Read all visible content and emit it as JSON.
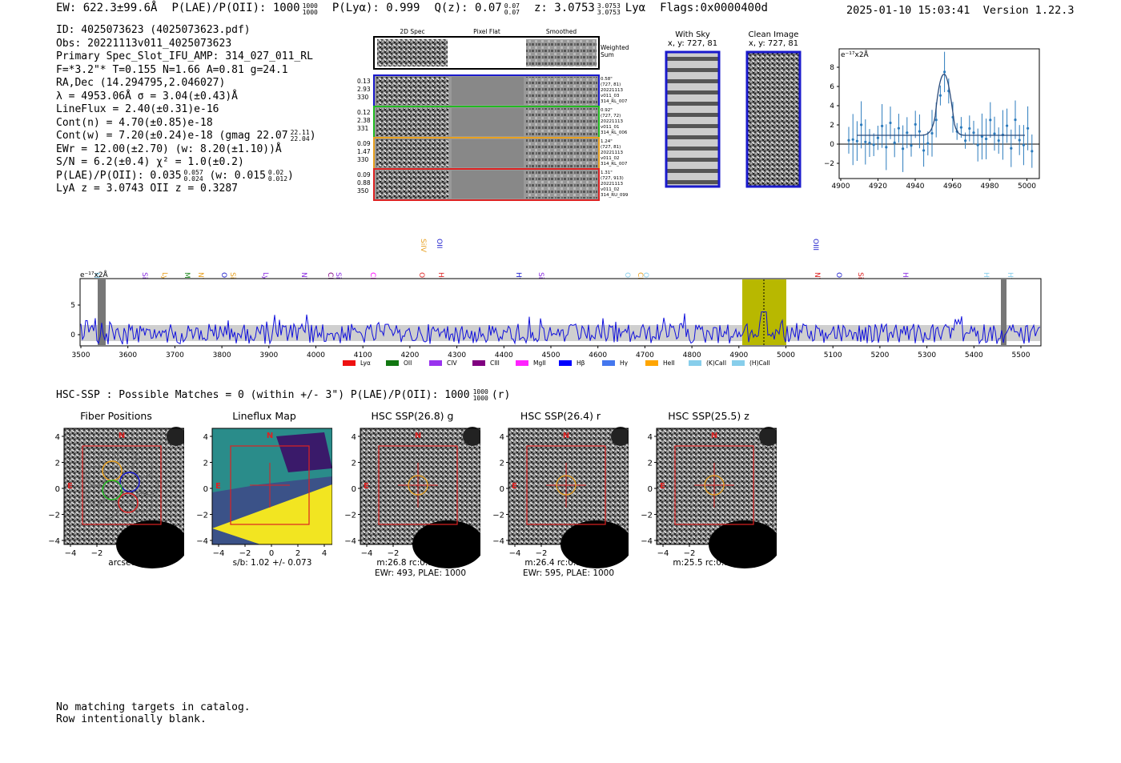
{
  "header": {
    "ew": "EW: 622.3±99.6Å",
    "plae": "P(LAE)/P(OII): 1000",
    "plae_hi": "1000",
    "plae_lo": "1000",
    "plya": "P(Lyα): 0.999",
    "qz": "Q(z): 0.07",
    "qz_hi": "0.07",
    "qz_lo": "0.07",
    "z": "z: 3.0753",
    "z_hi": "3.0753",
    "z_lo": "3.0753",
    "line": "Lyα",
    "flags": "Flags:0x0000400d",
    "datetime": "2025-01-10 15:03:41",
    "version": "Version 1.22.3"
  },
  "info": {
    "id": "ID: 4025073623 (4025073623.pdf)",
    "obs": "Obs: 20221113v011_4025073623",
    "primary": "Primary Spec_Slot_IFU_AMP: 314_027_011_RL",
    "params": "F=*3.2\"*  T=0.155  N=1.66  A=0.81  g=24.1",
    "radec": "RA,Dec (14.294795,2.046027)",
    "lambda": "λ = 4953.06Å   σ = 3.04(±0.43)Å",
    "lineflux": "LineFlux = 2.40(±0.31)e-16",
    "contn": "Cont(n) = 4.70(±0.85)e-18",
    "contw": "Cont(w) = 7.20(±0.24)e-18 (gmag 22.07",
    "contw_hi": "22.11",
    "contw_lo": "22.04",
    "contw_end": ")",
    "ewr": "EWr = 12.00(±2.70) (w: 8.20(±1.10))Å",
    "sn": "S/N = 6.2(±0.4)  χ² = 1.0(±0.2)",
    "plae2": "P(LAE)/P(OII): 0.035",
    "plae2_hi": "0.057",
    "plae2_lo": "0.024",
    "plae2_w": "(w: 0.015",
    "plae2_w_hi": "0.02",
    "plae2_w_lo": "0.012",
    "plae2_end": ")",
    "lyaz": "LyA z = 3.0743   OII z = 0.3287"
  },
  "spec2d": {
    "col_labels": [
      "2D Spec",
      "Pixel Flat",
      "Smoothed"
    ],
    "weighted": [
      "Weighted",
      "Sum"
    ],
    "rows": [
      {
        "left": [
          "0.13",
          "2.93",
          "330"
        ],
        "right": [
          "0.58\"",
          "(727, 81)",
          "20221113",
          "v011_03",
          "314_RL_007"
        ],
        "color": "#1a1acc"
      },
      {
        "left": [
          "0.12",
          "2.38",
          "331"
        ],
        "right": [
          "0.92\"",
          "(727, 72)",
          "20221113",
          "v011_01",
          "314_RL_006"
        ],
        "color": "#22bb22"
      },
      {
        "left": [
          "0.09",
          "1.47",
          "330"
        ],
        "right": [
          "1.24\"",
          "(727, 81)",
          "20221113",
          "v011_02",
          "314_RL_007"
        ],
        "color": "#e8a020"
      },
      {
        "left": [
          "0.09",
          "0.88",
          "350"
        ],
        "right": [
          "1.31\"",
          "(727, 913)",
          "20221113",
          "v011_02",
          "314_RU_099"
        ],
        "color": "#dd2222"
      }
    ]
  },
  "cutouts": {
    "withsky_title": "With Sky",
    "withsky_coord": "x, y: 727, 81",
    "clean_title": "Clean Image",
    "clean_coord": "x, y: 727, 81"
  },
  "zoom_plot": {
    "unit": "e⁻¹⁷x2Å",
    "x_ticks": [
      "4900",
      "4920",
      "4940",
      "4960",
      "4980",
      "5000"
    ],
    "y_ticks": [
      "8",
      "6",
      "4",
      "2",
      "0",
      "−2"
    ]
  },
  "full_spec": {
    "unit": "e⁻¹⁷x2Å",
    "x_ticks": [
      "3500",
      "3600",
      "3700",
      "3800",
      "3900",
      "4000",
      "4100",
      "4200",
      "4300",
      "4400",
      "4500",
      "4600",
      "4700",
      "4800",
      "4900",
      "5000",
      "5100",
      "5200",
      "5300",
      "5400",
      "5500"
    ],
    "y_ticks": [
      "5",
      "0"
    ],
    "line_labels": [
      {
        "name": "MgII",
        "color": "#87ceeb"
      },
      {
        "name": "SiIV",
        "color": "#8a2be2"
      },
      {
        "name": "Lyα",
        "color": "#e8a020"
      },
      {
        "name": "MgII",
        "color": "#228b22"
      },
      {
        "name": "NV",
        "color": "#e8a020"
      },
      {
        "name": "SiII",
        "color": "#e8a020"
      },
      {
        "name": "OII",
        "color": "#1a1acc"
      },
      {
        "name": "Lyα",
        "color": "#8a2be2"
      },
      {
        "name": "NV",
        "color": "#8a2be2"
      },
      {
        "name": "CIV",
        "color": "#800080"
      },
      {
        "name": "SiII",
        "color": "#8a2be2"
      },
      {
        "name": "CII",
        "color": "#ff00ff"
      },
      {
        "name": "SiIV",
        "color": "#e8a020"
      },
      {
        "name": "OVI",
        "color": "#dd2222"
      },
      {
        "name": "OII",
        "color": "#1a1acc"
      },
      {
        "name": "HeII",
        "color": "#dd2222"
      },
      {
        "name": "Hγ",
        "color": "#1a1acc"
      },
      {
        "name": "SiIV",
        "color": "#8a2be2"
      },
      {
        "name": "OII",
        "color": "#87ceeb"
      },
      {
        "name": "CIV",
        "color": "#e8a020"
      },
      {
        "name": "OII",
        "color": "#87ceeb"
      },
      {
        "name": "OIII",
        "color": "#1a1acc"
      },
      {
        "name": "NV",
        "color": "#dd2222"
      },
      {
        "name": "OIII",
        "color": "#1a1acc"
      },
      {
        "name": "SiII",
        "color": "#dd2222"
      },
      {
        "name": "HeII",
        "color": "#8a2be2"
      },
      {
        "name": "Hγ",
        "color": "#87ceeb"
      },
      {
        "name": "Hγ",
        "color": "#87ceeb"
      }
    ],
    "legend": [
      {
        "name": "Lyα",
        "color": "#ee1111"
      },
      {
        "name": "OII",
        "color": "#117711"
      },
      {
        "name": "CIV",
        "color": "#9933ee"
      },
      {
        "name": "CIII",
        "color": "#800080"
      },
      {
        "name": "MgII",
        "color": "#ff22ff"
      },
      {
        "name": "Hβ",
        "color": "#0000ff"
      },
      {
        "name": "Hγ",
        "color": "#4477ee"
      },
      {
        "name": "HeII",
        "color": "#ffa500"
      },
      {
        "name": "(K)CaII",
        "color": "#87ceeb"
      },
      {
        "name": "(H)CaII",
        "color": "#87ceeb"
      }
    ]
  },
  "hsc": {
    "line": "HSC-SSP : Possible Matches = 0 (within +/- 3\")  P(LAE)/P(OII): 1000",
    "line_hi": "1000",
    "line_lo": "1000",
    "line_end": "(r)",
    "panels": [
      {
        "title": "Fiber Positions",
        "cap1": "arcsecs",
        "cap2": ""
      },
      {
        "title": "Lineflux Map",
        "cap1": "s/b: 1.02 +/- 0.073",
        "cap2": ""
      },
      {
        "title": "HSC SSP(26.8) g",
        "cap1": "m:26.8 rc:0.9\"  s:0.1\"",
        "cap2": "EWr: 493, PLAE: 1000"
      },
      {
        "title": "HSC SSP(26.4) r",
        "cap1": "m:26.4 rc:0.9\"  s:0.1\"",
        "cap2": "EWr: 595, PLAE: 1000"
      },
      {
        "title": "HSC SSP(25.5) z",
        "cap1": "m:25.5 rc:0.9\"  s:0.1\"",
        "cap2": ""
      }
    ],
    "axis_ticks": [
      "4",
      "2",
      "0",
      "−2",
      "−4"
    ],
    "axis_xticks": [
      "−4",
      "−2",
      "0",
      "2",
      "4"
    ],
    "north": "N",
    "east": "E"
  },
  "footer": {
    "line1": "No matching targets in catalog.",
    "line2": "Row intentionally blank."
  }
}
